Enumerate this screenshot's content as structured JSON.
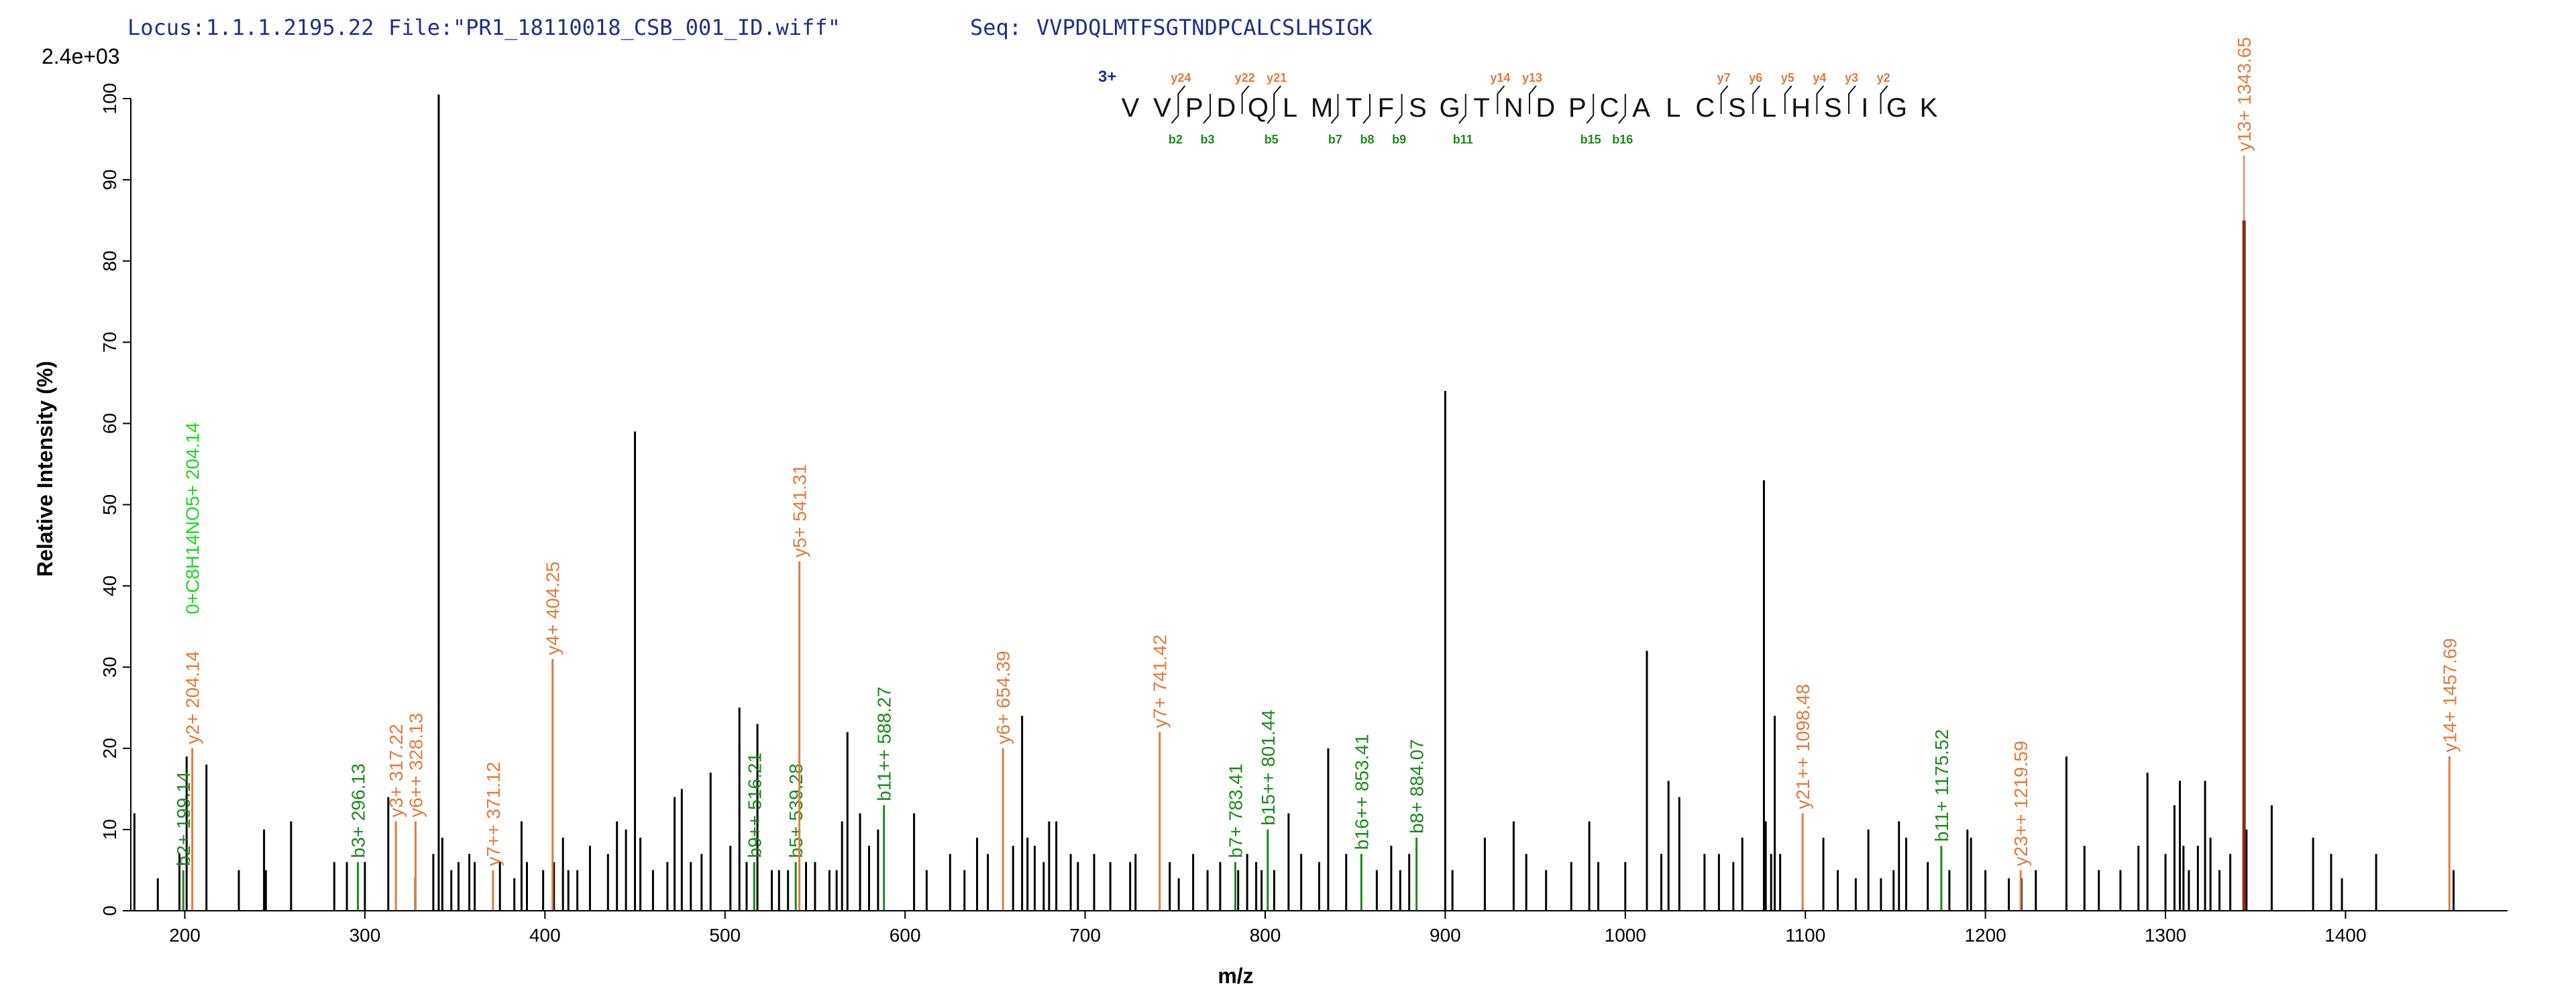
{
  "header": {
    "locus_key": "Locus:",
    "locus_val": "1.1.1.2195.22",
    "file_key": "File:",
    "file_val": "\"PR1_18110018_CSB_001_ID.wiff\"",
    "seq_key": "Seq:",
    "seq_val": "VVPDQLMTFSGTNDPCALCSLHSIGK"
  },
  "colors": {
    "y_ion": "#e07b3c",
    "b_ion": "#1a8a1a",
    "neutral_loss": "#1fd61f",
    "background_peak": "#000000",
    "header_text": "#1f2f8a",
    "charge": "#1a2ca0",
    "precursor_peak": "#8b2a12"
  },
  "chart_data": {
    "type": "bar",
    "title": "",
    "xlabel": "m/z",
    "ylabel": "Relative Intensity (%)",
    "scale_max": "2.4e+03",
    "xlim": [
      170,
      1490
    ],
    "ylim": [
      0,
      100
    ],
    "x_ticks": [
      200,
      300,
      400,
      500,
      600,
      700,
      800,
      900,
      1000,
      1100,
      1200,
      1300,
      1400
    ],
    "y_ticks": [
      0,
      10,
      20,
      30,
      40,
      50,
      60,
      70,
      80,
      90,
      100
    ],
    "charge_state": "3+",
    "sequence": [
      "V",
      "V",
      "P",
      "D",
      "Q",
      "L",
      "M",
      "T",
      "F",
      "S",
      "G",
      "T",
      "N",
      "D",
      "P",
      "C",
      "A",
      "L",
      "C",
      "S",
      "L",
      "H",
      "S",
      "I",
      "G",
      "K"
    ],
    "y_markers": [
      {
        "after": 2,
        "label": "y24"
      },
      {
        "after": 4,
        "label": "y22"
      },
      {
        "after": 5,
        "label": "y21"
      },
      {
        "after": 12,
        "label": "y14"
      },
      {
        "after": 13,
        "label": "y13"
      },
      {
        "after": 19,
        "label": "y7"
      },
      {
        "after": 20,
        "label": "y6"
      },
      {
        "after": 21,
        "label": "y5"
      },
      {
        "after": 22,
        "label": "y4"
      },
      {
        "after": 23,
        "label": "y3"
      },
      {
        "after": 24,
        "label": "y2"
      }
    ],
    "b_markers": [
      {
        "after": 2,
        "label": "b2"
      },
      {
        "after": 3,
        "label": "b3"
      },
      {
        "after": 5,
        "label": "b5"
      },
      {
        "after": 7,
        "label": "b7"
      },
      {
        "after": 8,
        "label": "b8"
      },
      {
        "after": 9,
        "label": "b9"
      },
      {
        "after": 11,
        "label": "b11"
      },
      {
        "after": 15,
        "label": "b15"
      },
      {
        "after": 16,
        "label": "b16"
      }
    ],
    "annotated_peaks": [
      {
        "mz": 199.14,
        "intensity": 5,
        "label": "b2+ 199.14",
        "ion": "b"
      },
      {
        "mz": 204.14,
        "intensity": 20,
        "label": "y2+ 204.14",
        "ion": "y"
      },
      {
        "mz": 204.14,
        "intensity": 36,
        "label": "0+C8H14NO5+ 204.14",
        "ion": "neutral",
        "stem": false
      },
      {
        "mz": 296.13,
        "intensity": 6,
        "label": "b3+ 296.13",
        "ion": "b"
      },
      {
        "mz": 317.22,
        "intensity": 11,
        "label": "y3+ 317.22",
        "ion": "y"
      },
      {
        "mz": 328.13,
        "intensity": 11,
        "label": "y6++ 328.13",
        "ion": "y"
      },
      {
        "mz": 371.12,
        "intensity": 5,
        "label": "y7++ 371.12",
        "ion": "y"
      },
      {
        "mz": 404.25,
        "intensity": 31,
        "label": "y4+ 404.25",
        "ion": "y"
      },
      {
        "mz": 516.21,
        "intensity": 6,
        "label": "b9++ 516.21",
        "ion": "b"
      },
      {
        "mz": 539.28,
        "intensity": 6,
        "label": "b5+ 539.28",
        "ion": "b"
      },
      {
        "mz": 541.31,
        "intensity": 43,
        "label": "y5+ 541.31",
        "ion": "y"
      },
      {
        "mz": 588.27,
        "intensity": 13,
        "label": "b11++ 588.27",
        "ion": "b"
      },
      {
        "mz": 654.39,
        "intensity": 20,
        "label": "y6+ 654.39",
        "ion": "y"
      },
      {
        "mz": 741.42,
        "intensity": 22,
        "label": "y7+ 741.42",
        "ion": "y"
      },
      {
        "mz": 783.41,
        "intensity": 6,
        "label": "b7+ 783.41",
        "ion": "b"
      },
      {
        "mz": 801.44,
        "intensity": 10,
        "label": "b15++ 801.44",
        "ion": "b"
      },
      {
        "mz": 853.41,
        "intensity": 7,
        "label": "b16++ 853.41",
        "ion": "b"
      },
      {
        "mz": 884.07,
        "intensity": 9,
        "label": "b8+ 884.07",
        "ion": "b"
      },
      {
        "mz": 1098.48,
        "intensity": 12,
        "label": "y21++ 1098.48",
        "ion": "y"
      },
      {
        "mz": 1175.52,
        "intensity": 8,
        "label": "b11+ 1175.52",
        "ion": "b"
      },
      {
        "mz": 1219.59,
        "intensity": 5,
        "label": "y23++ 1219.59",
        "ion": "y"
      },
      {
        "mz": 1343.65,
        "intensity": 93,
        "label": "y13+ 1343.65",
        "ion": "y"
      },
      {
        "mz": 1457.69,
        "intensity": 19,
        "label": "y14+ 1457.69",
        "ion": "y"
      }
    ],
    "other_peaks": [
      [
        172,
        12
      ],
      [
        185,
        4
      ],
      [
        197,
        7
      ],
      [
        201,
        19
      ],
      [
        212,
        18
      ],
      [
        230,
        5
      ],
      [
        244,
        10
      ],
      [
        245,
        5
      ],
      [
        259,
        11
      ],
      [
        283,
        6
      ],
      [
        290,
        6
      ],
      [
        300,
        6
      ],
      [
        313,
        14
      ],
      [
        328,
        4
      ],
      [
        338,
        7
      ],
      [
        341,
        100.5
      ],
      [
        343,
        9
      ],
      [
        348,
        5
      ],
      [
        352,
        6
      ],
      [
        358,
        7
      ],
      [
        361,
        6
      ],
      [
        375,
        6
      ],
      [
        383,
        4
      ],
      [
        387,
        11
      ],
      [
        390,
        6
      ],
      [
        399,
        5
      ],
      [
        405,
        6
      ],
      [
        410,
        9
      ],
      [
        413,
        5
      ],
      [
        418,
        5
      ],
      [
        425,
        8
      ],
      [
        435,
        7
      ],
      [
        440,
        11
      ],
      [
        445,
        10
      ],
      [
        450,
        59
      ],
      [
        453,
        9
      ],
      [
        460,
        5
      ],
      [
        468,
        6
      ],
      [
        472,
        14
      ],
      [
        476,
        15
      ],
      [
        481,
        6
      ],
      [
        487,
        7
      ],
      [
        492,
        17
      ],
      [
        503,
        8
      ],
      [
        508,
        25
      ],
      [
        512,
        6
      ],
      [
        518,
        23
      ],
      [
        526,
        5
      ],
      [
        530,
        5
      ],
      [
        535,
        5
      ],
      [
        545,
        6
      ],
      [
        550,
        6
      ],
      [
        558,
        5
      ],
      [
        562,
        5
      ],
      [
        565,
        11
      ],
      [
        568,
        22
      ],
      [
        575,
        12
      ],
      [
        580,
        8
      ],
      [
        585,
        10
      ],
      [
        605,
        12
      ],
      [
        612,
        5
      ],
      [
        625,
        7
      ],
      [
        633,
        5
      ],
      [
        640,
        9
      ],
      [
        646,
        7
      ],
      [
        660,
        8
      ],
      [
        665,
        24
      ],
      [
        668,
        9
      ],
      [
        672,
        8
      ],
      [
        677,
        6
      ],
      [
        680,
        11
      ],
      [
        684,
        11
      ],
      [
        692,
        7
      ],
      [
        696,
        6
      ],
      [
        705,
        7
      ],
      [
        714,
        6
      ],
      [
        725,
        6
      ],
      [
        728,
        7
      ],
      [
        747,
        6
      ],
      [
        752,
        4
      ],
      [
        760,
        7
      ],
      [
        768,
        5
      ],
      [
        775,
        6
      ],
      [
        785,
        5
      ],
      [
        790,
        7
      ],
      [
        795,
        6
      ],
      [
        798,
        5
      ],
      [
        805,
        5
      ],
      [
        813,
        12
      ],
      [
        820,
        7
      ],
      [
        830,
        6
      ],
      [
        835,
        20
      ],
      [
        845,
        7
      ],
      [
        862,
        5
      ],
      [
        870,
        8
      ],
      [
        875,
        5
      ],
      [
        880,
        7
      ],
      [
        900,
        64
      ],
      [
        904,
        5
      ],
      [
        922,
        9
      ],
      [
        938,
        11
      ],
      [
        945,
        7
      ],
      [
        956,
        5
      ],
      [
        970,
        6
      ],
      [
        980,
        11
      ],
      [
        985,
        6
      ],
      [
        1000,
        6
      ],
      [
        1012,
        32
      ],
      [
        1020,
        7
      ],
      [
        1024,
        16
      ],
      [
        1030,
        14
      ],
      [
        1044,
        7
      ],
      [
        1052,
        7
      ],
      [
        1060,
        6
      ],
      [
        1065,
        9
      ],
      [
        1077,
        53
      ],
      [
        1078,
        11
      ],
      [
        1081,
        7
      ],
      [
        1083,
        24
      ],
      [
        1086,
        7
      ],
      [
        1110,
        9
      ],
      [
        1118,
        5
      ],
      [
        1128,
        4
      ],
      [
        1135,
        10
      ],
      [
        1142,
        4
      ],
      [
        1149,
        5
      ],
      [
        1152,
        11
      ],
      [
        1156,
        9
      ],
      [
        1168,
        6
      ],
      [
        1180,
        5
      ],
      [
        1190,
        10
      ],
      [
        1192,
        9
      ],
      [
        1200,
        5
      ],
      [
        1213,
        4
      ],
      [
        1220,
        4
      ],
      [
        1228,
        5
      ],
      [
        1245,
        19
      ],
      [
        1255,
        8
      ],
      [
        1263,
        5
      ],
      [
        1275,
        5
      ],
      [
        1285,
        8
      ],
      [
        1290,
        17
      ],
      [
        1300,
        7
      ],
      [
        1305,
        13
      ],
      [
        1308,
        16
      ],
      [
        1310,
        8
      ],
      [
        1313,
        5
      ],
      [
        1318,
        8
      ],
      [
        1322,
        16
      ],
      [
        1325,
        9
      ],
      [
        1330,
        5
      ],
      [
        1336,
        7
      ],
      [
        1345,
        10
      ],
      [
        1359,
        13
      ],
      [
        1382,
        9
      ],
      [
        1392,
        7
      ],
      [
        1398,
        4
      ],
      [
        1417,
        7
      ],
      [
        1460,
        5
      ]
    ]
  }
}
